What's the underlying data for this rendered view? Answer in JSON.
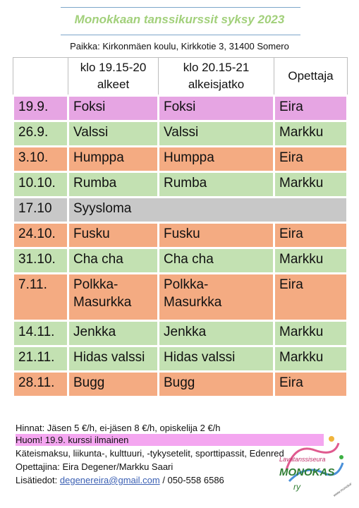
{
  "title": "Monokkaan tanssikurssit syksy 2023",
  "place": "Paikka: Kirkonmäen koulu, Kirkkotie 3, 31400 Somero",
  "table": {
    "headers": [
      "",
      "klo 19.15-20\nalkeet",
      "klo 20.15-21\nalkeisjatko",
      "Opettaja"
    ],
    "rows": [
      {
        "date": "19.9.",
        "alkeet": "Foksi",
        "jatko": "Foksi",
        "teacher": "Eira"
      },
      {
        "date": "26.9.",
        "alkeet": "Valssi",
        "jatko": "Valssi",
        "teacher": "Markku"
      },
      {
        "date": "3.10.",
        "alkeet": "Humppa",
        "jatko": "Humppa",
        "teacher": "Eira"
      },
      {
        "date": "10.10.",
        "alkeet": "Rumba",
        "jatko": "Rumba",
        "teacher": "Markku"
      },
      {
        "date": "17.10",
        "note": "Syysloma"
      },
      {
        "date": "24.10.",
        "alkeet": "Fusku",
        "jatko": "Fusku",
        "teacher": "Eira"
      },
      {
        "date": "31.10.",
        "alkeet": "Cha cha",
        "jatko": "Cha cha",
        "teacher": "Markku"
      },
      {
        "date": "7.11.",
        "alkeet": "Polkka-\nMasurkka",
        "jatko": "Polkka-\nMasurkka",
        "teacher": "Eira"
      },
      {
        "date": "14.11.",
        "alkeet": "Jenkka",
        "jatko": "Jenkka",
        "teacher": "Markku"
      },
      {
        "date": "21.11.",
        "alkeet": "Hidas valssi",
        "jatko": "Hidas valssi",
        "teacher": "Markku"
      },
      {
        "date": "28.11.",
        "alkeet": "Bugg",
        "jatko": "Bugg",
        "teacher": "Eira"
      }
    ]
  },
  "colors": {
    "pink": "#e6a5e3",
    "green": "#c3e1b2",
    "orange": "#f4ab82",
    "gray": "#c8c8c8",
    "title": "#a2d07b",
    "highlight": "#f4a6f0"
  },
  "footer": {
    "prices": "Hinnat: Jäsen 5 €/h, ei-jäsen 8 €/h, opiskelija 2 €/h",
    "free_note": "Huom! 19.9. kurssi ilmainen",
    "payment": "Käteismaksu, liikunta-, kulttuuri, -tykysetelit, sporttipassit, Edenred",
    "teachers": "Opettajina: Eira Degener/Markku Saari",
    "info_label": "Lisätiedot: ",
    "email": "degenereira@gmail.com",
    "phone": " / 050-558 6586"
  },
  "logo": {
    "line1": "Lavatanssiseura",
    "line2": "MONOKAS",
    "line3": "ry",
    "url": "www.monokas.fi"
  }
}
